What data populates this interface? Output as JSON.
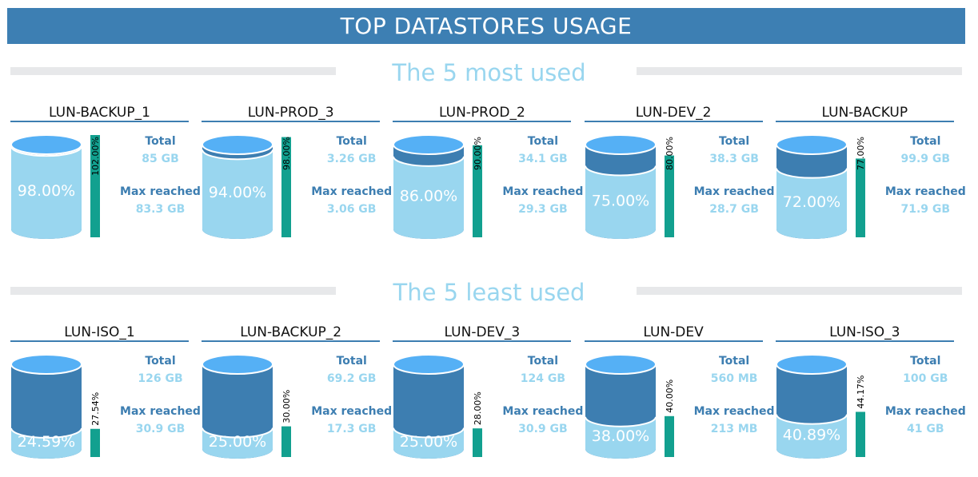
{
  "header": {
    "title": "TOP DATASTORES USAGE"
  },
  "labels": {
    "total": "Total",
    "max_reached": "Max reached"
  },
  "colors": {
    "header": "#3d7fb3",
    "liquid": "#99d6ef",
    "empty": "#3d7eb1",
    "cap": "#55b0f5",
    "bar": "#12a08f"
  },
  "sections": [
    {
      "title": "The 5 most used",
      "items": [
        {
          "name": "LUN-BACKUP_1",
          "used_pct": "98.00%",
          "used": 98.0,
          "max_pct": "102.00%",
          "max": 102.0,
          "total": "85 GB",
          "max_reached": "83.3 GB"
        },
        {
          "name": "LUN-PROD_3",
          "used_pct": "94.00%",
          "used": 94.0,
          "max_pct": "98.00%",
          "max": 98.0,
          "total": "3.26 GB",
          "max_reached": "3.06 GB"
        },
        {
          "name": "LUN-PROD_2",
          "used_pct": "86.00%",
          "used": 86.0,
          "max_pct": "90.00%",
          "max": 90.0,
          "total": "34.1 GB",
          "max_reached": "29.3 GB"
        },
        {
          "name": "LUN-DEV_2",
          "used_pct": "75.00%",
          "used": 75.0,
          "max_pct": "80.00%",
          "max": 80.0,
          "total": "38.3 GB",
          "max_reached": "28.7 GB"
        },
        {
          "name": "LUN-BACKUP",
          "used_pct": "72.00%",
          "used": 72.0,
          "max_pct": "77.00%",
          "max": 77.0,
          "total": "99.9 GB",
          "max_reached": "71.9 GB"
        }
      ]
    },
    {
      "title": "The 5 least used",
      "items": [
        {
          "name": "LUN-ISO_1",
          "used_pct": "24.59%",
          "used": 24.59,
          "max_pct": "27.54%",
          "max": 27.54,
          "total": "126 GB",
          "max_reached": "30.9 GB"
        },
        {
          "name": "LUN-BACKUP_2",
          "used_pct": "25.00%",
          "used": 25.0,
          "max_pct": "30.00%",
          "max": 30.0,
          "total": "69.2 GB",
          "max_reached": "17.3 GB"
        },
        {
          "name": "LUN-DEV_3",
          "used_pct": "25.00%",
          "used": 25.0,
          "max_pct": "28.00%",
          "max": 28.0,
          "total": "124 GB",
          "max_reached": "30.9 GB"
        },
        {
          "name": "LUN-DEV",
          "used_pct": "38.00%",
          "used": 38.0,
          "max_pct": "40.00%",
          "max": 40.0,
          "total": "560 MB",
          "max_reached": "213 MB"
        },
        {
          "name": "LUN-ISO_3",
          "used_pct": "40.89%",
          "used": 40.89,
          "max_pct": "44.17%",
          "max": 44.17,
          "total": "100 GB",
          "max_reached": "41 GB"
        }
      ]
    }
  ]
}
